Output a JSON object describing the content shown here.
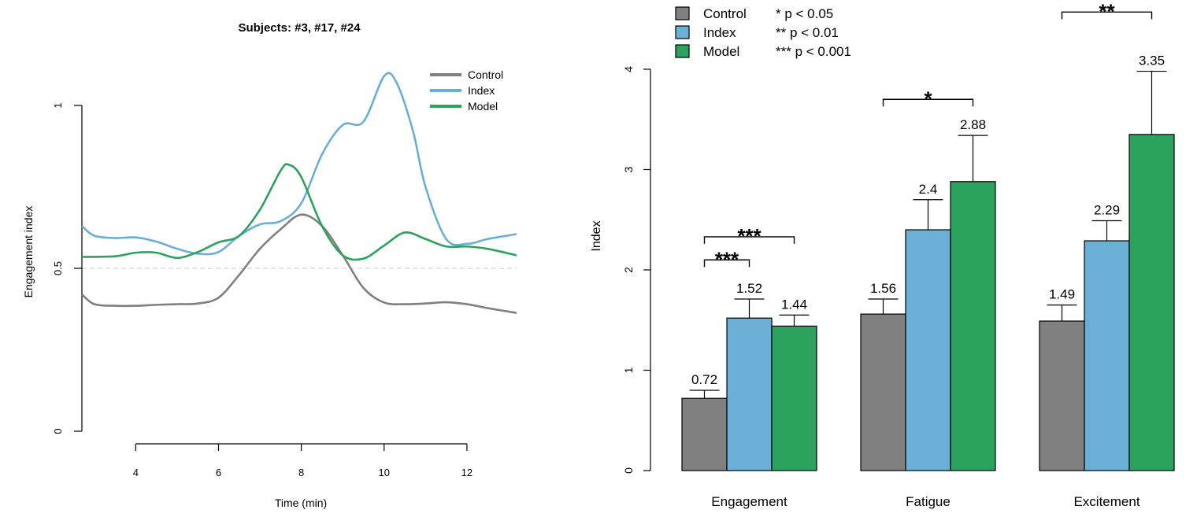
{
  "chart_data": [
    {
      "type": "line",
      "title": "Subjects: #3, #17, #24",
      "xlabel": "Time (min)",
      "ylabel": "Engagement index",
      "xlim": [
        2.7,
        13.2
      ],
      "ylim": [
        0,
        1
      ],
      "x_ticks": [
        4,
        6,
        8,
        10,
        12
      ],
      "y_ticks": [
        0,
        0.5,
        1
      ],
      "y_tick_labels": [
        "0",
        "0.5",
        "1"
      ],
      "reference_line": 0.5,
      "reference_line_color": "#d3d3d3",
      "legend_position": "top-right",
      "series": [
        {
          "name": "Control",
          "color": "#808080",
          "points": [
            [
              2.7,
              0.42
            ],
            [
              3.0,
              0.39
            ],
            [
              3.5,
              0.385
            ],
            [
              4.0,
              0.385
            ],
            [
              4.5,
              0.388
            ],
            [
              5.0,
              0.39
            ],
            [
              5.5,
              0.392
            ],
            [
              6.0,
              0.41
            ],
            [
              6.5,
              0.48
            ],
            [
              7.0,
              0.56
            ],
            [
              7.5,
              0.62
            ],
            [
              8.0,
              0.665
            ],
            [
              8.5,
              0.63
            ],
            [
              9.0,
              0.54
            ],
            [
              9.5,
              0.44
            ],
            [
              10.0,
              0.395
            ],
            [
              10.5,
              0.39
            ],
            [
              11.0,
              0.392
            ],
            [
              11.5,
              0.396
            ],
            [
              12.0,
              0.39
            ],
            [
              12.5,
              0.378
            ],
            [
              13.2,
              0.363
            ]
          ]
        },
        {
          "name": "Index",
          "color": "#6baed6",
          "points": [
            [
              2.7,
              0.63
            ],
            [
              3.0,
              0.6
            ],
            [
              3.5,
              0.593
            ],
            [
              4.0,
              0.595
            ],
            [
              4.5,
              0.582
            ],
            [
              5.0,
              0.56
            ],
            [
              5.5,
              0.545
            ],
            [
              6.0,
              0.55
            ],
            [
              6.5,
              0.6
            ],
            [
              7.0,
              0.635
            ],
            [
              7.5,
              0.645
            ],
            [
              8.0,
              0.7
            ],
            [
              8.5,
              0.85
            ],
            [
              9.0,
              0.94
            ],
            [
              9.5,
              0.95
            ],
            [
              10.0,
              1.09
            ],
            [
              10.3,
              1.07
            ],
            [
              10.7,
              0.92
            ],
            [
              11.0,
              0.75
            ],
            [
              11.5,
              0.59
            ],
            [
              12.0,
              0.575
            ],
            [
              12.5,
              0.59
            ],
            [
              13.2,
              0.605
            ]
          ]
        },
        {
          "name": "Model",
          "color": "#2ca25f",
          "points": [
            [
              2.7,
              0.535
            ],
            [
              3.5,
              0.537
            ],
            [
              4.0,
              0.548
            ],
            [
              4.5,
              0.548
            ],
            [
              5.0,
              0.532
            ],
            [
              5.5,
              0.55
            ],
            [
              6.0,
              0.58
            ],
            [
              6.5,
              0.6
            ],
            [
              7.0,
              0.68
            ],
            [
              7.5,
              0.8
            ],
            [
              7.7,
              0.818
            ],
            [
              8.0,
              0.78
            ],
            [
              8.5,
              0.63
            ],
            [
              9.0,
              0.54
            ],
            [
              9.5,
              0.53
            ],
            [
              10.0,
              0.57
            ],
            [
              10.5,
              0.61
            ],
            [
              11.0,
              0.59
            ],
            [
              11.5,
              0.567
            ],
            [
              12.0,
              0.567
            ],
            [
              12.5,
              0.56
            ],
            [
              13.2,
              0.54
            ]
          ]
        }
      ]
    },
    {
      "type": "bar",
      "title": "",
      "xlabel": "",
      "ylabel": "Index",
      "ylim": [
        0,
        4
      ],
      "y_ticks": [
        0,
        1,
        2,
        3,
        4
      ],
      "categories": [
        "Engagement",
        "Fatigue",
        "Excitement"
      ],
      "legend_position": "top-left",
      "series": [
        {
          "name": "Control",
          "color": "#808080",
          "values": [
            0.72,
            1.56,
            1.49
          ],
          "errors": [
            0.08,
            0.15,
            0.16
          ],
          "value_labels": [
            "0.72",
            "1.56",
            "1.49"
          ]
        },
        {
          "name": "Index",
          "color": "#6baed6",
          "values": [
            1.52,
            2.4,
            2.29
          ],
          "errors": [
            0.19,
            0.3,
            0.2
          ],
          "value_labels": [
            "1.52",
            "2.4",
            "2.29"
          ]
        },
        {
          "name": "Model",
          "color": "#2ca25f",
          "values": [
            1.44,
            2.88,
            3.35
          ],
          "errors": [
            0.11,
            0.46,
            0.63
          ],
          "value_labels": [
            "1.44",
            "2.88",
            "3.35"
          ]
        }
      ],
      "significance_legend": [
        "* p < 0.05",
        "** p < 0.01",
        "*** p < 0.001"
      ],
      "significance": [
        {
          "category": 0,
          "from": 0,
          "to": 1,
          "label": "***",
          "level": 2.1
        },
        {
          "category": 0,
          "from": 0,
          "to": 2,
          "label": "***",
          "level": 2.33
        },
        {
          "category": 1,
          "from": 0,
          "to": 2,
          "label": "*",
          "level": 3.7
        },
        {
          "category": 2,
          "from": 0,
          "to": 2,
          "label": "**",
          "level": 4.57
        }
      ]
    }
  ]
}
